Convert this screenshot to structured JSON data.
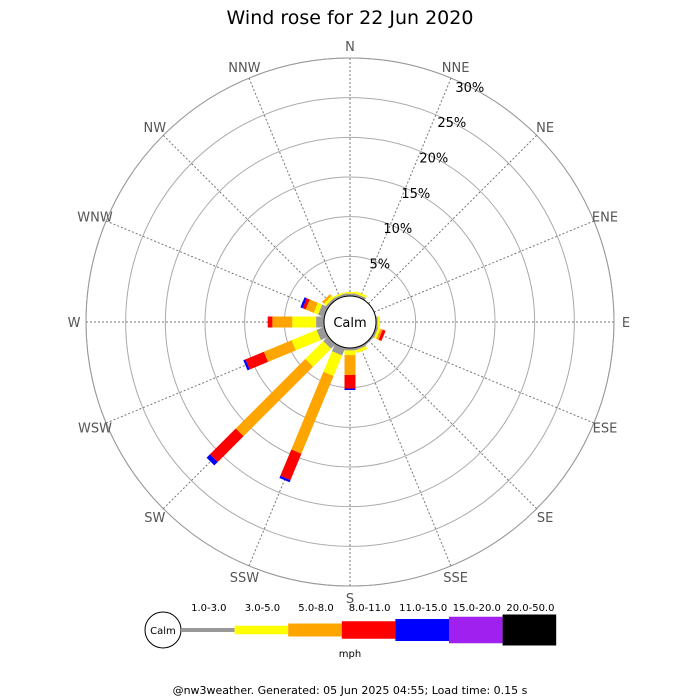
{
  "chart_data": {
    "type": "windrose",
    "title": "Wind rose for 22 Jun 2020",
    "directions": [
      "N",
      "NNE",
      "NE",
      "ENE",
      "E",
      "ESE",
      "SE",
      "SSE",
      "S",
      "SSW",
      "SW",
      "WSW",
      "W",
      "WNW",
      "NW",
      "NNW"
    ],
    "ring_labels": [
      "5%",
      "10%",
      "15%",
      "20%",
      "25%",
      "30%"
    ],
    "rmax_percent": 30,
    "calm_label": "Calm",
    "unit_label": "mph",
    "bins": [
      {
        "label": "1.0-3.0",
        "color": "#999999"
      },
      {
        "label": "3.0-5.0",
        "color": "#ffff00"
      },
      {
        "label": "5.0-8.0",
        "color": "#ffa500"
      },
      {
        "label": "8.0-11.0",
        "color": "#ff0000"
      },
      {
        "label": "11.0-15.0",
        "color": "#0000ff"
      },
      {
        "label": "15.0-20.0",
        "color": "#a020f0"
      },
      {
        "label": "20.0-50.0",
        "color": "#000000"
      }
    ],
    "stacks": [
      {
        "direction": "N",
        "values": [
          0.3,
          0.2,
          0,
          0,
          0,
          0,
          0
        ]
      },
      {
        "direction": "NNE",
        "values": [
          0.3,
          0.3,
          0,
          0,
          0,
          0,
          0
        ]
      },
      {
        "direction": "NE",
        "values": [
          0,
          0,
          0,
          0,
          0,
          0,
          0
        ]
      },
      {
        "direction": "ENE",
        "values": [
          0,
          0,
          0,
          0,
          0,
          0,
          0
        ]
      },
      {
        "direction": "E",
        "values": [
          0.2,
          0.3,
          0,
          0,
          0,
          0,
          0
        ]
      },
      {
        "direction": "ESE",
        "values": [
          0.3,
          0.3,
          0.3,
          0.4,
          0,
          0,
          0
        ]
      },
      {
        "direction": "SE",
        "values": [
          0.2,
          0,
          0,
          0,
          0,
          0,
          0
        ]
      },
      {
        "direction": "SSE",
        "values": [
          0.3,
          0.4,
          0,
          0,
          0,
          0,
          0
        ]
      },
      {
        "direction": "S",
        "values": [
          0.3,
          0.6,
          2.5,
          1.7,
          0.2,
          0,
          0
        ]
      },
      {
        "direction": "SSW",
        "values": [
          1.0,
          2.8,
          10.6,
          3.6,
          0.3,
          0,
          0
        ]
      },
      {
        "direction": "SW",
        "values": [
          0.8,
          3.2,
          12.4,
          4.6,
          0.6,
          0,
          0
        ]
      },
      {
        "direction": "WSW",
        "values": [
          1.0,
          3.4,
          3.8,
          2.5,
          0.3,
          0,
          0
        ]
      },
      {
        "direction": "W",
        "values": [
          1.0,
          3.0,
          2.5,
          0.6,
          0,
          0,
          0
        ]
      },
      {
        "direction": "WNW",
        "values": [
          0.8,
          0.6,
          1.1,
          0.4,
          0.3,
          0,
          0
        ]
      },
      {
        "direction": "NW",
        "values": [
          0.3,
          0.4,
          0.3,
          0,
          0,
          0,
          0
        ]
      },
      {
        "direction": "NNW",
        "values": [
          0.3,
          0.2,
          0,
          0,
          0,
          0,
          0
        ]
      }
    ]
  },
  "footer": "@nw3weather. Generated: 05 Jun 2025 04:55; Load time: 0.15 s"
}
